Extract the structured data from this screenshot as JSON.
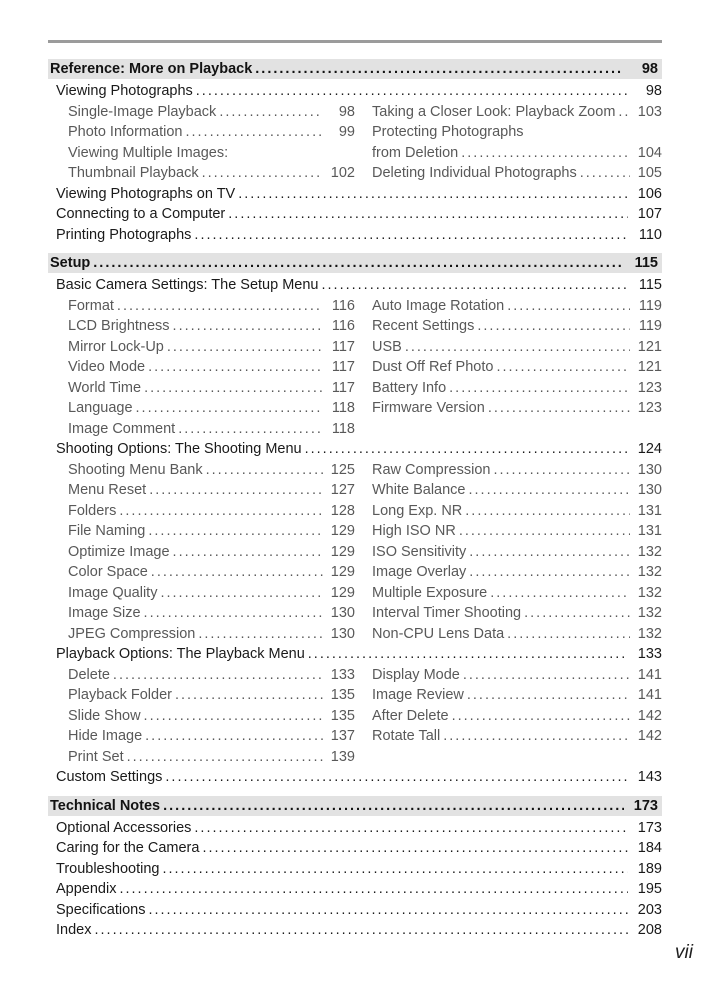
{
  "page": {
    "folio": "vii"
  },
  "colors": {
    "section_bar": "#e2e2e2",
    "top_rule": "#9b9b9b",
    "level1_text": "#1a1a1a",
    "level2_text": "#595959"
  },
  "toc": {
    "sections": [
      {
        "title": "Reference: More on Playback",
        "page": "98",
        "rows": [
          {
            "label": "Viewing Photographs",
            "page": "98"
          },
          {
            "columns": true,
            "left": [
              {
                "label": "Single-Image Playback",
                "page": "98"
              },
              {
                "label": "Photo Information",
                "page": "99"
              },
              {
                "label": "Viewing Multiple Images:",
                "page": ""
              },
              {
                "label": "Thumbnail Playback",
                "page": "102"
              }
            ],
            "right": [
              {
                "label": "Taking a Closer Look: Playback Zoom",
                "page": "103"
              },
              {
                "label": "Protecting Photographs",
                "page": ""
              },
              {
                "label": "from Deletion",
                "page": "104"
              },
              {
                "label": "Deleting Individual Photographs",
                "page": "105"
              }
            ]
          },
          {
            "label": "Viewing Photographs on TV",
            "page": "106"
          },
          {
            "label": "Connecting to a Computer",
            "page": "107"
          },
          {
            "label": "Printing Photographs",
            "page": "110"
          }
        ]
      },
      {
        "title": "Setup",
        "page": "115",
        "rows": [
          {
            "label": "Basic Camera Settings: The Setup Menu",
            "page": "115"
          },
          {
            "columns": true,
            "left": [
              {
                "label": "Format",
                "page": "116"
              },
              {
                "label": "LCD Brightness",
                "page": "116"
              },
              {
                "label": "Mirror Lock-Up",
                "page": "117"
              },
              {
                "label": "Video Mode",
                "page": "117"
              },
              {
                "label": "World Time",
                "page": "117"
              },
              {
                "label": "Language",
                "page": "118"
              },
              {
                "label": "Image Comment",
                "page": "118"
              }
            ],
            "right": [
              {
                "label": "Auto Image Rotation",
                "page": "119"
              },
              {
                "label": "Recent Settings",
                "page": "119"
              },
              {
                "label": "USB",
                "page": "121"
              },
              {
                "label": "Dust Off Ref Photo",
                "page": "121"
              },
              {
                "label": "Battery Info",
                "page": "123"
              },
              {
                "label": "Firmware Version",
                "page": "123"
              }
            ]
          },
          {
            "label": "Shooting Options: The Shooting Menu",
            "page": "124"
          },
          {
            "columns": true,
            "left": [
              {
                "label": "Shooting Menu Bank",
                "page": "125"
              },
              {
                "label": "Menu Reset",
                "page": "127"
              },
              {
                "label": "Folders",
                "page": "128"
              },
              {
                "label": "File Naming",
                "page": "129"
              },
              {
                "label": "Optimize Image",
                "page": "129"
              },
              {
                "label": "Color Space",
                "page": "129"
              },
              {
                "label": "Image Quality",
                "page": "129"
              },
              {
                "label": "Image Size",
                "page": "130"
              },
              {
                "label": "JPEG Compression",
                "page": "130"
              }
            ],
            "right": [
              {
                "label": "Raw Compression",
                "page": "130"
              },
              {
                "label": "White Balance",
                "page": "130"
              },
              {
                "label": "Long Exp. NR",
                "page": "131"
              },
              {
                "label": "High ISO NR",
                "page": "131"
              },
              {
                "label": "ISO Sensitivity",
                "page": "132"
              },
              {
                "label": "Image Overlay",
                "page": "132"
              },
              {
                "label": "Multiple Exposure",
                "page": "132"
              },
              {
                "label": "Interval Timer Shooting",
                "page": "132"
              },
              {
                "label": "Non-CPU Lens Data",
                "page": "132"
              }
            ]
          },
          {
            "label": "Playback Options: The Playback Menu",
            "page": "133"
          },
          {
            "columns": true,
            "left": [
              {
                "label": "Delete",
                "page": "133"
              },
              {
                "label": "Playback Folder",
                "page": "135"
              },
              {
                "label": "Slide Show",
                "page": "135"
              },
              {
                "label": "Hide Image",
                "page": "137"
              },
              {
                "label": "Print Set",
                "page": "139"
              }
            ],
            "right": [
              {
                "label": "Display Mode",
                "page": "141"
              },
              {
                "label": "Image Review",
                "page": "141"
              },
              {
                "label": "After Delete",
                "page": "142"
              },
              {
                "label": "Rotate Tall",
                "page": "142"
              }
            ]
          },
          {
            "label": "Custom Settings",
            "page": "143"
          }
        ]
      },
      {
        "title": "Technical Notes",
        "page": "173",
        "rows": [
          {
            "label": "Optional Accessories",
            "page": "173"
          },
          {
            "label": "Caring for the Camera",
            "page": "184"
          },
          {
            "label": "Troubleshooting",
            "page": "189"
          },
          {
            "label": "Appendix",
            "page": "195"
          },
          {
            "label": "Specifications",
            "page": "203"
          },
          {
            "label": "Index",
            "page": "208"
          }
        ]
      }
    ]
  }
}
